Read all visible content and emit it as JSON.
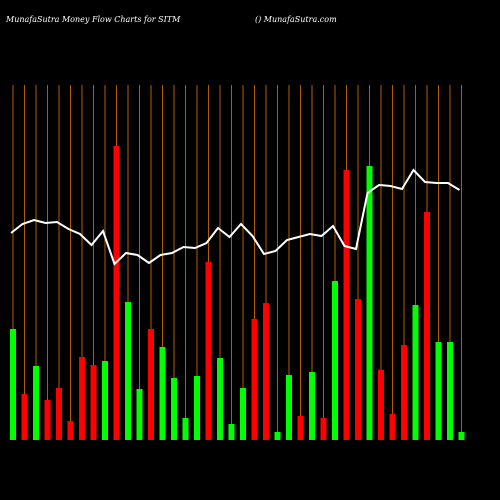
{
  "chart_data": {
    "type": "bar_line",
    "title": "MunafaSutra  Money Flow  Charts for SITM",
    "subtitle": "() MunafaSutra.com",
    "bars": {
      "values": [
        111,
        46,
        74,
        40,
        52,
        19,
        83,
        75,
        79,
        294,
        138,
        51,
        111,
        93,
        62,
        22,
        64,
        178,
        82,
        16,
        52,
        121,
        137,
        8,
        65,
        24,
        68,
        22,
        159,
        270,
        141,
        274,
        70,
        26,
        95,
        135,
        228,
        98,
        98,
        8
      ],
      "colors": [
        "#00ff00",
        "#ff0000",
        "#00ff00",
        "#ff0000",
        "#ff0000",
        "#ff0000",
        "#ff0000",
        "#ff0000",
        "#00ff00",
        "#ff0000",
        "#00ff00",
        "#00ff00",
        "#ff0000",
        "#00ff00",
        "#00ff00",
        "#00ff00",
        "#00ff00",
        "#ff0000",
        "#00ff00",
        "#00ff00",
        "#00ff00",
        "#ff0000",
        "#ff0000",
        "#00ff00",
        "#00ff00",
        "#ff0000",
        "#00ff00",
        "#ff0000",
        "#00ff00",
        "#ff0000",
        "#ff0000",
        "#00ff00",
        "#ff0000",
        "#ff0000",
        "#ff0000",
        "#00ff00",
        "#ff0000",
        "#00ff00",
        "#00ff00",
        "#00ff00"
      ]
    },
    "line": {
      "color": "#ffffff",
      "values": [
        207,
        216,
        220,
        217,
        218,
        211,
        206,
        195,
        209,
        176,
        187,
        185,
        177,
        185,
        187,
        193,
        192,
        197,
        212,
        203,
        216,
        204,
        186,
        189,
        200,
        203,
        206,
        204,
        214,
        194,
        191,
        247,
        255,
        254,
        251,
        270,
        258,
        257,
        257,
        250
      ]
    },
    "gridline_color": "#b35c00"
  }
}
